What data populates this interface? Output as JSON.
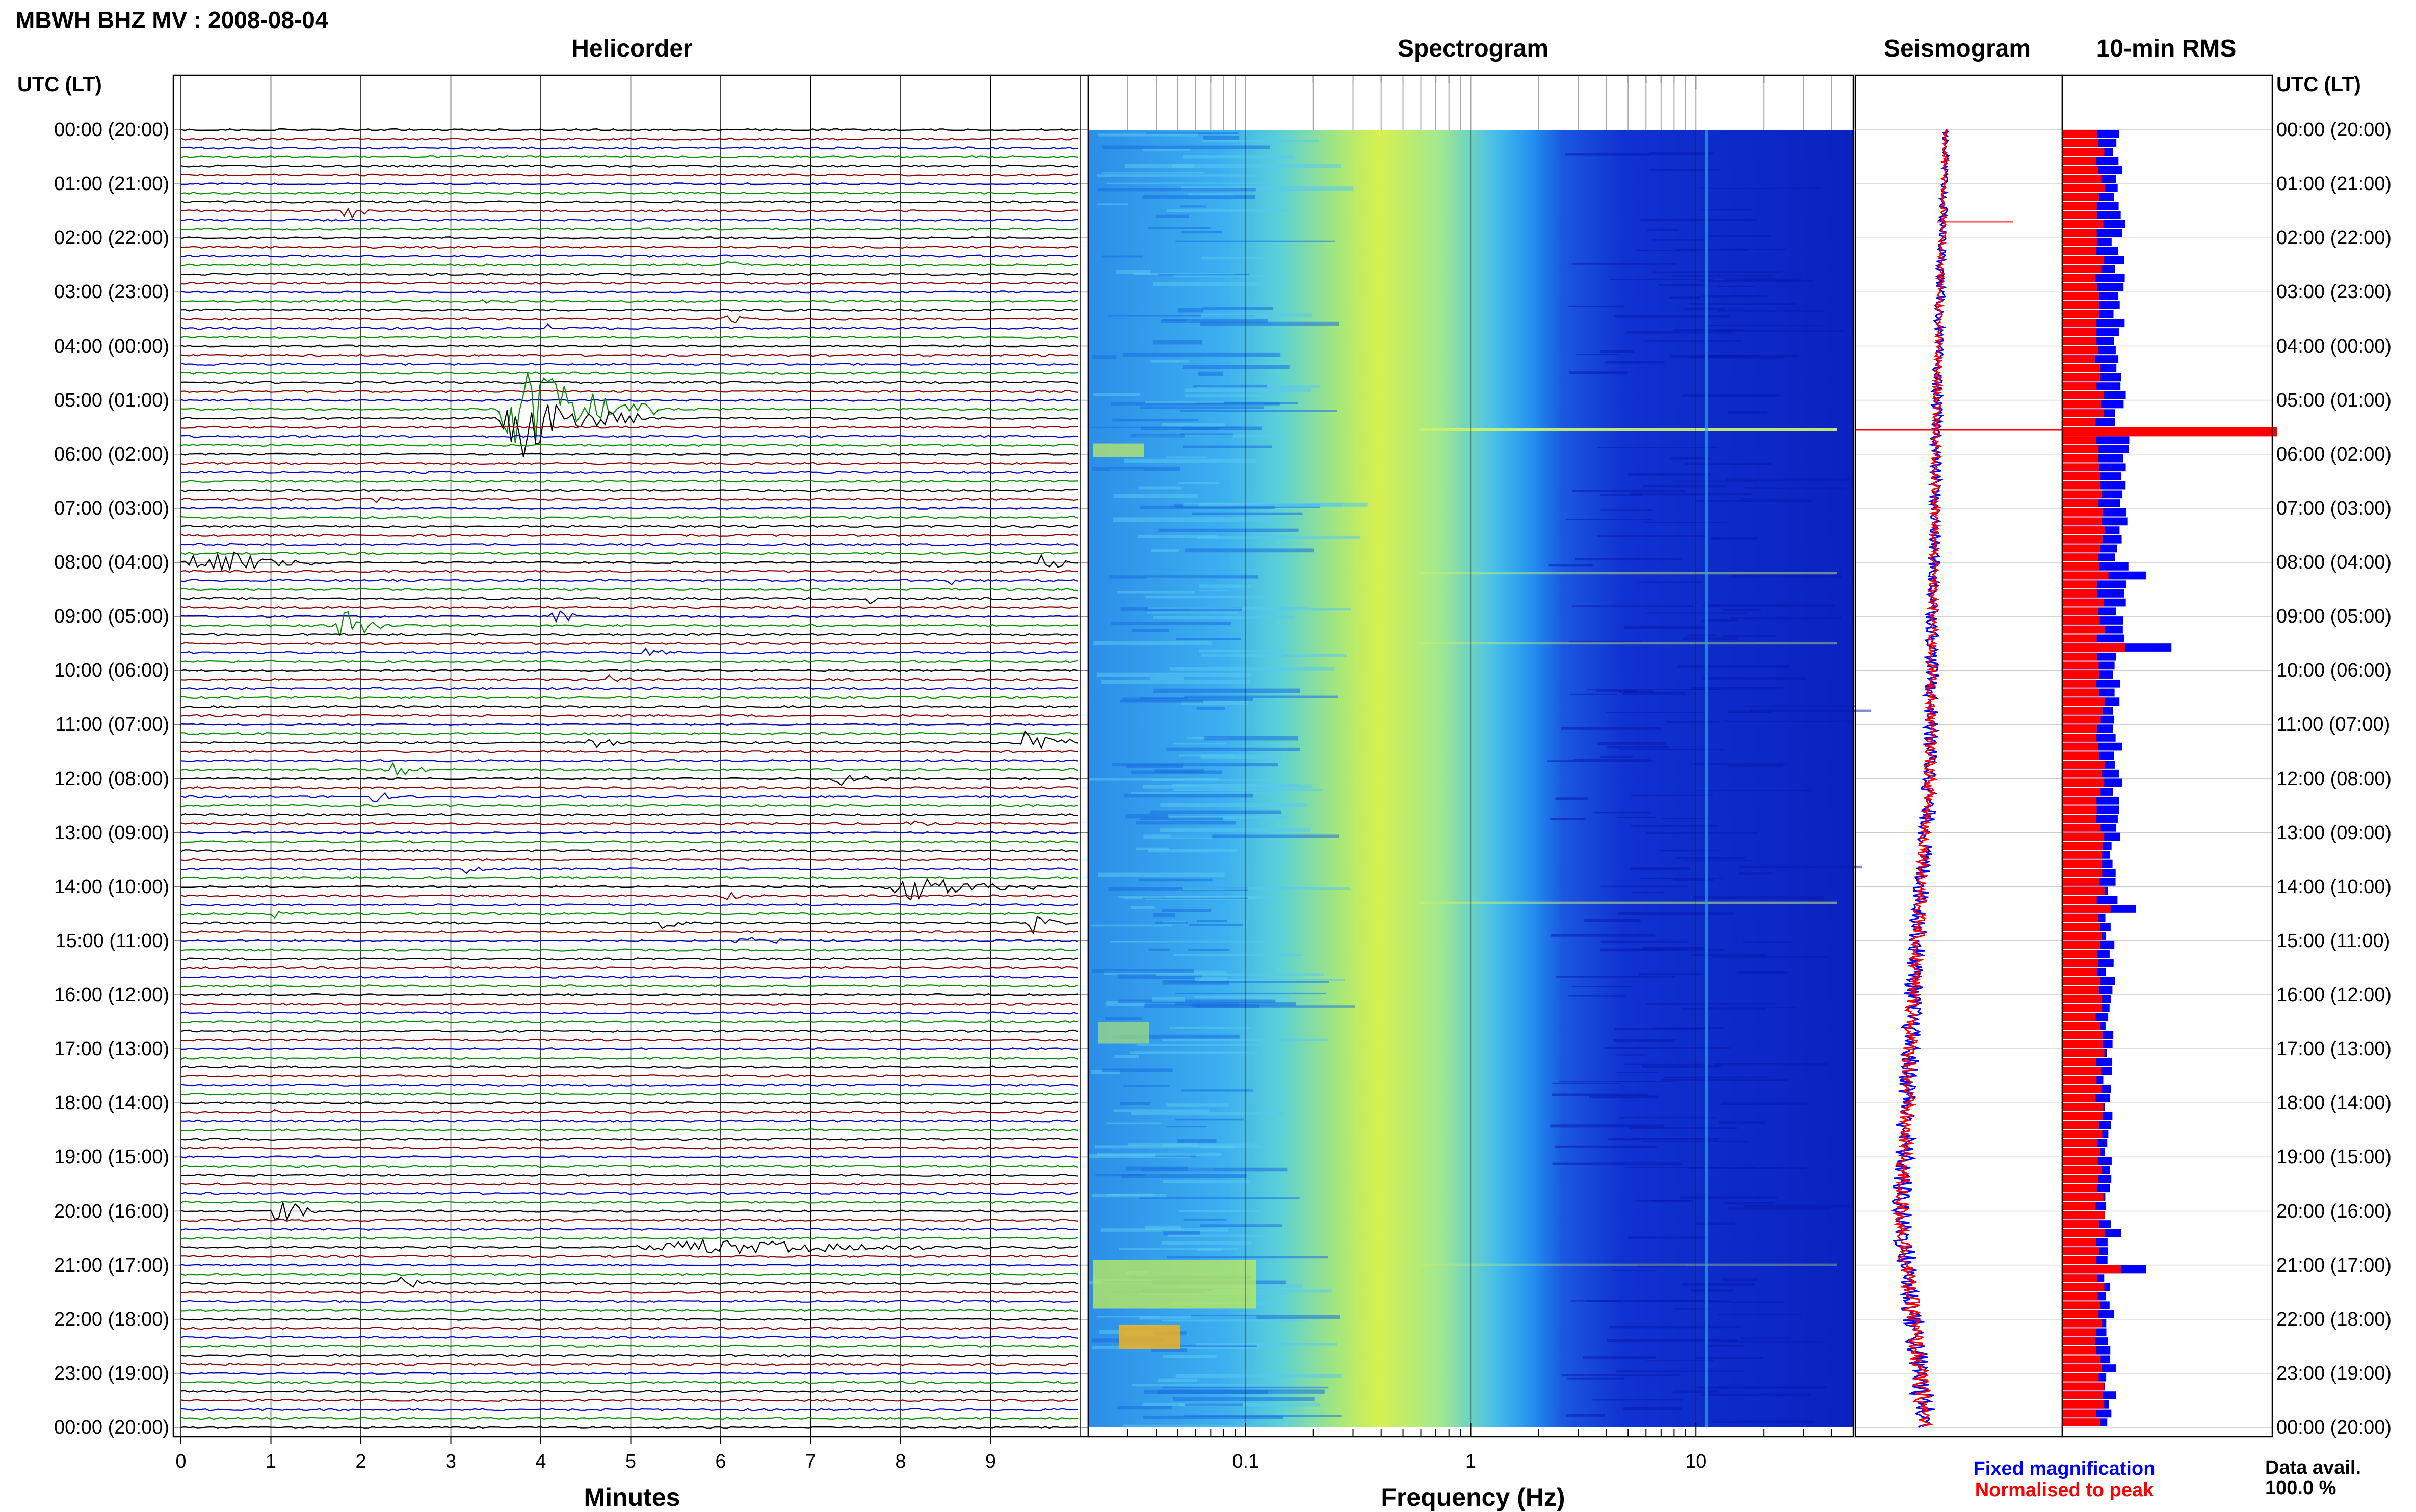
{
  "figure_title": "MBWH BHZ MV : 2008-08-04",
  "panels": {
    "helicorder": "Helicorder",
    "spectrogram": "Spectrogram",
    "seismogram": "Seismogram",
    "rms": "10-min RMS"
  },
  "axis_header": "UTC (LT)",
  "colors": {
    "trace_cycle": [
      "#000000",
      "#8b0000",
      "#0000c8",
      "#009000"
    ],
    "spec_low": "#1830d8",
    "spec_high": "#f0e020",
    "rms_fixed": "#0000ff",
    "rms_normalised": "#ff0000"
  },
  "legend": {
    "fixed": "Fixed magnification",
    "normalised": "Normalised to peak"
  },
  "data_avail": {
    "label": "Data avail.",
    "value": "100.0 %"
  },
  "chart_data": [
    {
      "type": "line",
      "panel": "Helicorder",
      "xlabel": "Minutes",
      "xlim": [
        0,
        10
      ],
      "x_ticks": [
        "0",
        "1",
        "2",
        "3",
        "4",
        "5",
        "6",
        "7",
        "8",
        "9"
      ],
      "ylabel": "UTC (LT)",
      "ylim_hours": [
        0,
        24
      ],
      "rows_per_hour": 6,
      "time_labels": [
        "00:00 (20:00)",
        "01:00 (21:00)",
        "02:00 (22:00)",
        "03:00 (23:00)",
        "04:00 (00:00)",
        "05:00 (01:00)",
        "06:00 (02:00)",
        "07:00 (03:00)",
        "08:00 (04:00)",
        "09:00 (05:00)",
        "10:00 (06:00)",
        "11:00 (07:00)",
        "12:00 (08:00)",
        "13:00 (09:00)",
        "14:00 (10:00)",
        "15:00 (11:00)",
        "16:00 (12:00)",
        "17:00 (13:00)",
        "18:00 (14:00)",
        "19:00 (15:00)",
        "20:00 (16:00)",
        "21:00 (17:00)",
        "22:00 (18:00)",
        "23:00 (19:00)",
        "00:00 (20:00)"
      ],
      "events": [
        {
          "row": 9,
          "minute": 1.8,
          "duration": 0.3,
          "amplitude": 0.6
        },
        {
          "row": 15,
          "minute": 6.0,
          "duration": 0.4,
          "amplitude": 0.15
        },
        {
          "row": 19,
          "minute": 3.3,
          "duration": 0.5,
          "amplitude": 0.12
        },
        {
          "row": 21,
          "minute": 6.0,
          "duration": 0.6,
          "amplitude": 0.2
        },
        {
          "row": 22,
          "minute": 4.0,
          "duration": 0.3,
          "amplitude": 0.2
        },
        {
          "row": 31,
          "minute": 3.5,
          "duration": 1.8,
          "amplitude": 1.6
        },
        {
          "row": 32,
          "minute": 3.5,
          "duration": 1.6,
          "amplitude": 1.3
        },
        {
          "row": 41,
          "minute": 2.1,
          "duration": 0.3,
          "amplitude": 0.2
        },
        {
          "row": 48,
          "minute": 0.0,
          "duration": 1.9,
          "amplitude": 0.45
        },
        {
          "row": 48,
          "minute": 9.5,
          "duration": 0.5,
          "amplitude": 0.3
        },
        {
          "row": 50,
          "minute": 8.5,
          "duration": 0.3,
          "amplitude": 0.15
        },
        {
          "row": 52,
          "minute": 7.6,
          "duration": 0.3,
          "amplitude": 0.15
        },
        {
          "row": 55,
          "minute": 1.7,
          "duration": 0.7,
          "amplitude": 0.6
        },
        {
          "row": 54,
          "minute": 4.1,
          "duration": 0.5,
          "amplitude": 0.25
        },
        {
          "row": 58,
          "minute": 5.1,
          "duration": 0.5,
          "amplitude": 0.15
        },
        {
          "row": 61,
          "minute": 4.7,
          "duration": 0.4,
          "amplitude": 0.2
        },
        {
          "row": 68,
          "minute": 9.3,
          "duration": 0.7,
          "amplitude": 0.55
        },
        {
          "row": 68,
          "minute": 4.5,
          "duration": 0.6,
          "amplitude": 0.2
        },
        {
          "row": 71,
          "minute": 2.2,
          "duration": 0.8,
          "amplitude": 0.28
        },
        {
          "row": 72,
          "minute": 7.2,
          "duration": 0.9,
          "amplitude": 0.18
        },
        {
          "row": 74,
          "minute": 2.1,
          "duration": 0.3,
          "amplitude": 0.3
        },
        {
          "row": 77,
          "minute": 8.0,
          "duration": 0.5,
          "amplitude": 0.1
        },
        {
          "row": 82,
          "minute": 3.1,
          "duration": 0.5,
          "amplitude": 0.18
        },
        {
          "row": 84,
          "minute": 7.8,
          "duration": 1.8,
          "amplitude": 0.45
        },
        {
          "row": 85,
          "minute": 6.0,
          "duration": 0.5,
          "amplitude": 0.15
        },
        {
          "row": 87,
          "minute": 1.0,
          "duration": 0.3,
          "amplitude": 0.15
        },
        {
          "row": 88,
          "minute": 5.3,
          "duration": 0.4,
          "amplitude": 0.22
        },
        {
          "row": 88,
          "minute": 9.4,
          "duration": 0.5,
          "amplitude": 0.3
        },
        {
          "row": 90,
          "minute": 6.1,
          "duration": 1.2,
          "amplitude": 0.12
        },
        {
          "row": 109,
          "minute": 1.0,
          "duration": 0.3,
          "amplitude": 0.15
        },
        {
          "row": 115,
          "minute": 4.4,
          "duration": 0.4,
          "amplitude": 0.2
        },
        {
          "row": 120,
          "minute": 1.0,
          "duration": 0.6,
          "amplitude": 0.5
        },
        {
          "row": 124,
          "minute": 5.0,
          "duration": 5.0,
          "amplitude": 0.25
        },
        {
          "row": 128,
          "minute": 2.3,
          "duration": 0.7,
          "amplitude": 0.22
        }
      ]
    },
    {
      "type": "heatmap",
      "panel": "Spectrogram",
      "xlabel": "Frequency (Hz)",
      "xscale": "log",
      "xlim": [
        0.02,
        50
      ],
      "x_ticks": [
        "0.1",
        "1",
        "10"
      ],
      "peak_band_hz": [
        0.2,
        0.6
      ],
      "ylim_hours": [
        0,
        24
      ]
    },
    {
      "type": "line",
      "panel": "Seismogram",
      "series": [
        {
          "name": "Fixed magnification",
          "values_hours": [
            0,
            4,
            8,
            12,
            16,
            20,
            24
          ],
          "offset": [
            0.44,
            0.4,
            0.38,
            0.36,
            0.28,
            0.22,
            0.34
          ]
        },
        {
          "name": "Normalised to peak",
          "values_hours": [
            0,
            4,
            8,
            12,
            16,
            20,
            24
          ],
          "offset": [
            0.44,
            0.4,
            0.38,
            0.36,
            0.28,
            0.22,
            0.34
          ]
        }
      ]
    },
    {
      "type": "bar",
      "panel": "10-min RMS",
      "orientation": "horizontal",
      "series": [
        {
          "name": "Fixed magnification",
          "peaks": [
            {
              "hour": 1.7,
              "value": 0.3
            },
            {
              "hour": 5.5,
              "value": 1.0
            },
            {
              "hour": 8.2,
              "value": 0.4
            },
            {
              "hour": 9.5,
              "value": 0.52
            },
            {
              "hour": 14.3,
              "value": 0.35
            },
            {
              "hour": 20.4,
              "value": 0.28
            },
            {
              "hour": 21.0,
              "value": 0.4
            }
          ],
          "baseline": 0.25
        },
        {
          "name": "Normalised to peak",
          "peaks": [
            {
              "hour": 5.5,
              "value": 1.0
            },
            {
              "hour": 8.2,
              "value": 0.22
            },
            {
              "hour": 9.5,
              "value": 0.3
            },
            {
              "hour": 14.3,
              "value": 0.23
            },
            {
              "hour": 21.0,
              "value": 0.28
            }
          ],
          "baseline": 0.18
        }
      ]
    }
  ]
}
